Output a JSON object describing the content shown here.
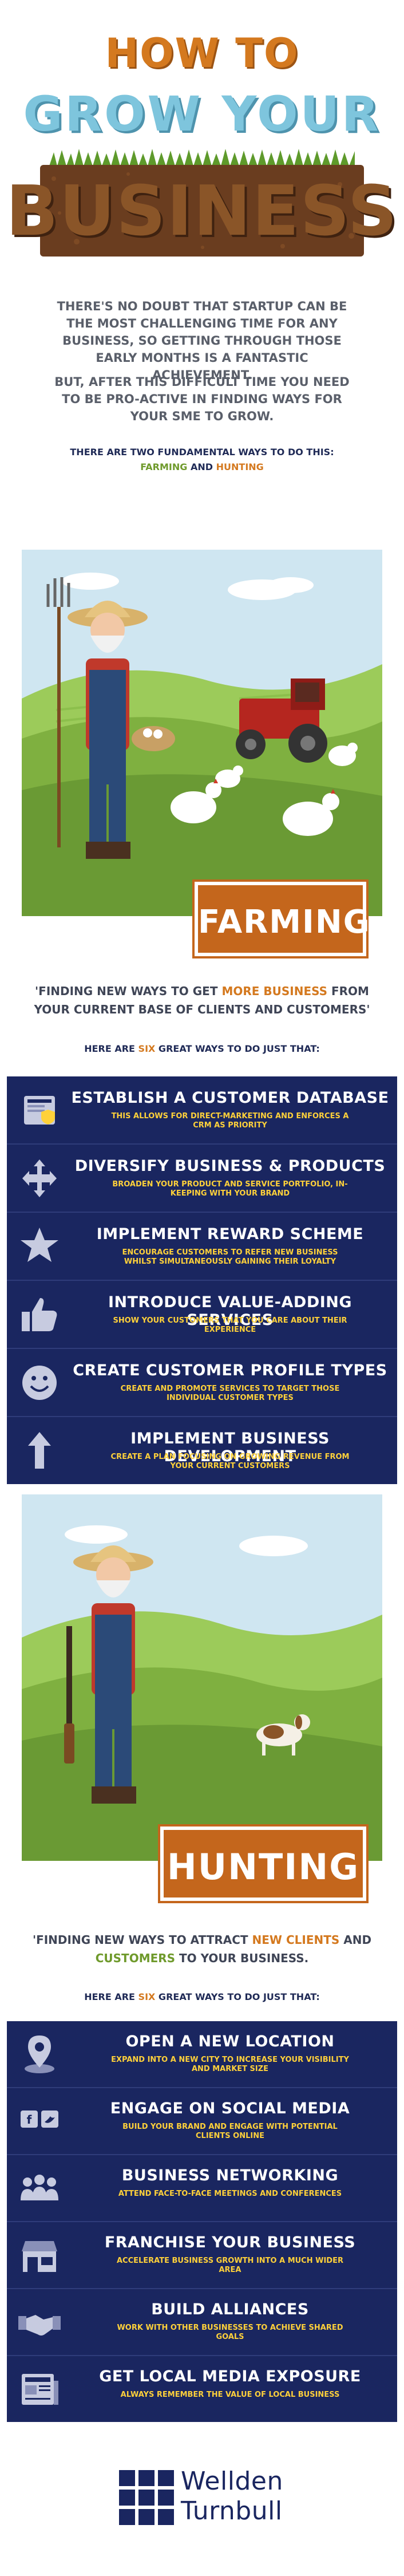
{
  "header": {
    "line1": "HOW TO",
    "line2": "GROW YOUR",
    "line3": "BUSINESS"
  },
  "intro": {
    "p1": "There's no doubt that startup can be the most challenging time for any business, so getting through those early months is a fantastic achievement.",
    "p2": "But, after this difficult time you need to be pro-active in finding ways for your SME to grow.",
    "two_ways": "There are two fundamental ways to do this:",
    "farming": "Farming",
    "and": "and",
    "hunting": "Hunting"
  },
  "farming": {
    "banner": "FARMING",
    "quote_a": "'Finding new ways to get ",
    "quote_highlight": "more business",
    "quote_b": " from your current base of clients and customers'",
    "sub_a": "Here are ",
    "sub_num": "six",
    "sub_b": " great ways to do just that:",
    "items": [
      {
        "icon": "database-icon",
        "title": "Establish a customer database",
        "desc": "This allows for direct-marketing and enforces a CRM as priority"
      },
      {
        "icon": "arrows-icon",
        "title": "Diversify business & products",
        "desc": "Broaden your product and service portfolio, in-keeping with your brand"
      },
      {
        "icon": "star-icon",
        "title": "Implement reward scheme",
        "desc": "Encourage customers to refer new business whilst simultaneously gaining their loyalty"
      },
      {
        "icon": "thumbs-up-icon",
        "title": "Introduce value-adding services",
        "desc": "Show your customers that you care about their experience"
      },
      {
        "icon": "smiley-icon",
        "title": "Create customer profile types",
        "desc": "Create and promote services to target those individual customer types"
      },
      {
        "icon": "up-arrow-icon",
        "title": "Implement business development",
        "desc": "Create a plan focusing on growing revenue from your current customers"
      }
    ]
  },
  "hunting": {
    "banner": "HUNTING",
    "quote_a": "'Finding new ways to attract ",
    "quote_h1": "new clients",
    "quote_b": " and ",
    "quote_h2": "customers",
    "quote_c": " to your business.",
    "sub_a": "Here are ",
    "sub_num": "six",
    "sub_b": " great ways to do just that:",
    "items": [
      {
        "icon": "map-pin-icon",
        "title": "Open a new location",
        "desc": "Expand into a new city to increase your visibility and market size"
      },
      {
        "icon": "social-media-icon",
        "title": "Engage on social media",
        "desc": "Build your brand and engage with potential clients online"
      },
      {
        "icon": "people-icon",
        "title": "Business networking",
        "desc": "Attend face-to-face meetings and conferences"
      },
      {
        "icon": "shop-icon",
        "title": "Franchise your business",
        "desc": "Accelerate business growth into a much wider area"
      },
      {
        "icon": "handshake-icon",
        "title": "Build alliances",
        "desc": "Work with other businesses to achieve shared goals"
      },
      {
        "icon": "newspaper-icon",
        "title": "Get local media exposure",
        "desc": "Always remember the value of local business"
      }
    ]
  },
  "footer": {
    "logo_line1": "Wellden",
    "logo_line2": "Turnbull"
  },
  "colors": {
    "orange": "#d4791f",
    "navy": "#1a2660",
    "yellow": "#ffd13a",
    "green": "#6f9a2c",
    "brown": "#6a3d1f"
  }
}
